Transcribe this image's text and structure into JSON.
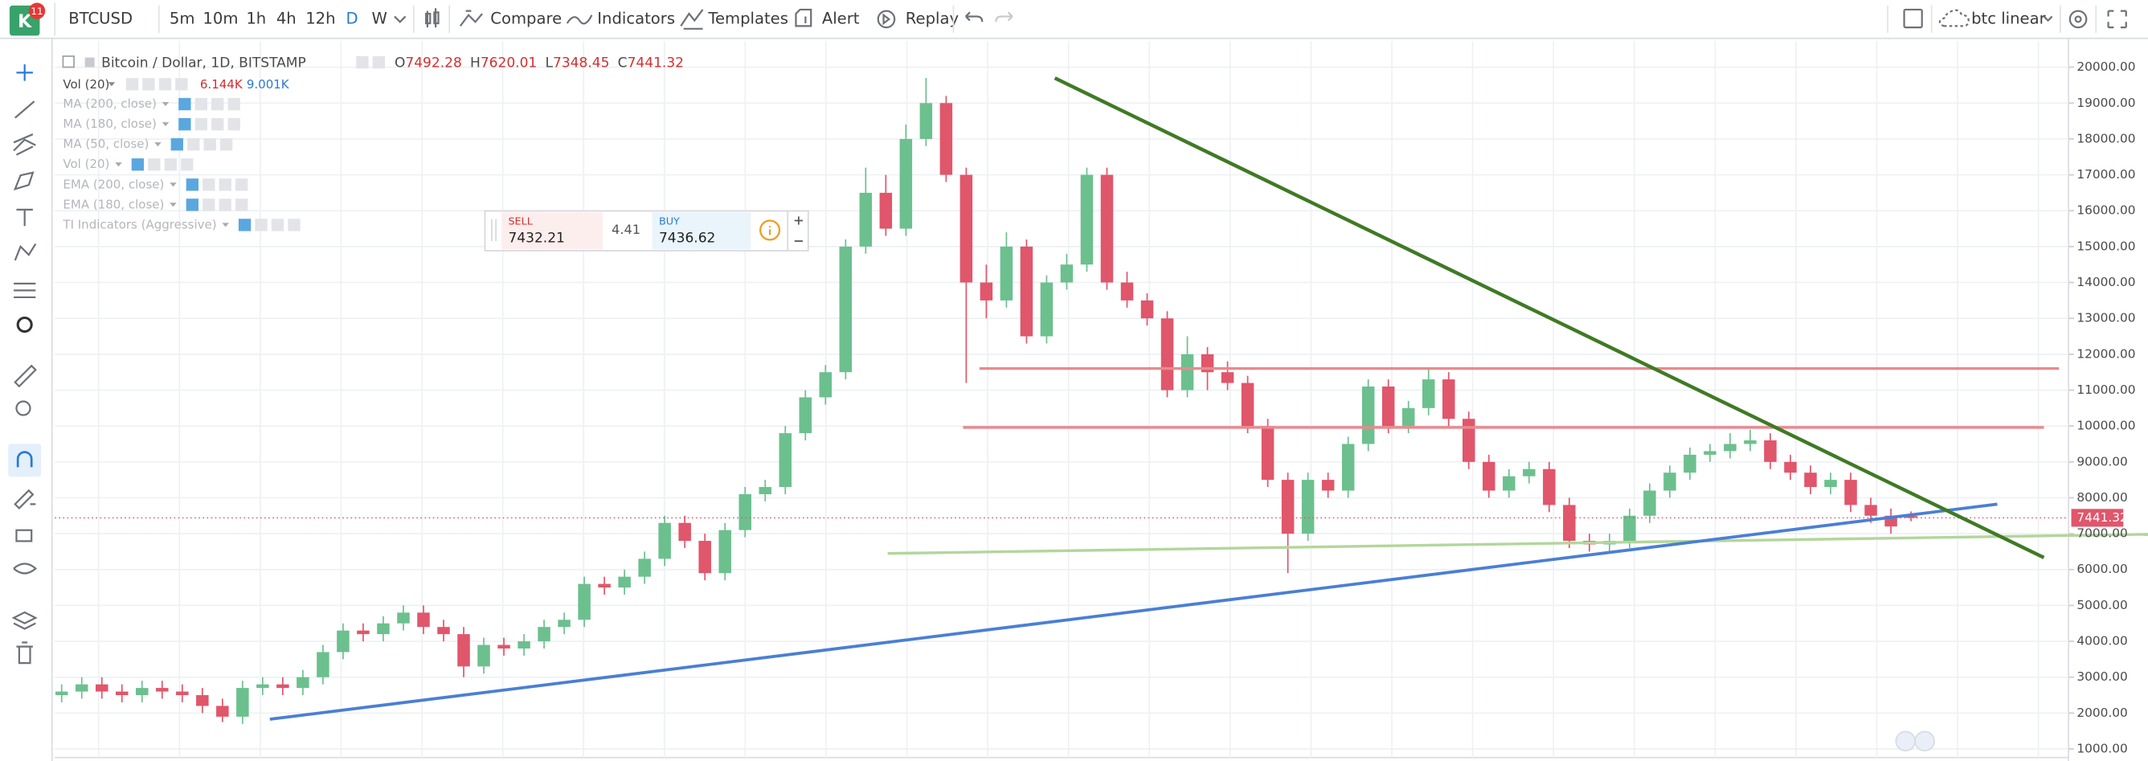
{
  "toolbar": {
    "badge": "11",
    "symbol": "BTCUSD",
    "intervals": [
      "5m",
      "10m",
      "1h",
      "4h",
      "12h",
      "D",
      "W"
    ],
    "active_interval": "D",
    "buttons": [
      "Compare",
      "Indicators",
      "Templates",
      "Alert",
      "Replay"
    ],
    "layout_name": "btc linear"
  },
  "legend": {
    "title": "Bitcoin / Dollar, 1D, BITSTAMP",
    "ohlc": [
      {
        "label": "O",
        "value": 7492.28
      },
      {
        "label": "H",
        "value": 7620.01
      },
      {
        "label": "L",
        "value": 7348.45
      },
      {
        "label": "C",
        "value": 7441.32
      }
    ],
    "volume": {
      "name": "Vol (20)",
      "values": [
        "6.144K",
        "9.001K"
      ]
    },
    "indicators": [
      "MA (200, close)",
      "MA (180, close)",
      "MA (50, close)",
      "Vol (20)",
      "EMA (200, close)",
      "EMA (180, close)",
      "TI Indicators (Aggressive)"
    ]
  },
  "trade": {
    "sell_label": "SELL",
    "sell_price": 7432.21,
    "spread": 4.41,
    "buy_label": "BUY",
    "buy_price": 7436.62
  },
  "chart_data": {
    "type": "candlestick",
    "up_color": "#6cc08e",
    "down_color": "#e0566b",
    "open": [
      2500,
      2600,
      2800,
      2600,
      2500,
      2700,
      2600,
      2500,
      2200,
      1900,
      2700,
      2800,
      2700,
      3000,
      3700,
      4300,
      4200,
      4500,
      4800,
      4400,
      4200,
      3300,
      3900,
      3800,
      4000,
      4400,
      4600,
      5600,
      5500,
      5800,
      6300,
      7300,
      6800,
      5900,
      7100,
      8100,
      8300,
      9800,
      10800,
      11500,
      15000,
      16500,
      15500,
      18000,
      19000,
      17000,
      14000,
      13500,
      15000,
      12500,
      14000,
      14500,
      17000,
      14000,
      13500,
      13000,
      11000,
      12000,
      11500,
      11200,
      10000,
      8500,
      7000,
      8500,
      8200,
      9500,
      11100,
      10000,
      10500,
      11300,
      10200,
      9000,
      8200,
      8600,
      8800,
      7800,
      6800,
      6700,
      6800,
      7500,
      8200,
      8700,
      9200,
      9300,
      9500,
      9600,
      9000,
      8700,
      8300,
      8500,
      7800,
      7500,
      7492.28
    ],
    "high": [
      2800,
      3000,
      3000,
      2800,
      2900,
      2900,
      2800,
      2700,
      2400,
      2900,
      3000,
      3000,
      3200,
      3900,
      4500,
      4500,
      4700,
      5000,
      5000,
      4600,
      4400,
      4100,
      4100,
      4200,
      4600,
      4800,
      5800,
      5800,
      6000,
      6500,
      7500,
      7500,
      7000,
      7300,
      8300,
      8500,
      10000,
      11000,
      11700,
      15200,
      17200,
      17000,
      18400,
      19700,
      19200,
      17200,
      14500,
      15400,
      15200,
      14200,
      14800,
      17200,
      17200,
      14300,
      13700,
      13200,
      12500,
      12200,
      11800,
      11400,
      10200,
      8700,
      8700,
      8700,
      9700,
      11300,
      11300,
      10700,
      11600,
      11500,
      10400,
      9200,
      8800,
      9000,
      9000,
      8000,
      7000,
      7000,
      7700,
      8400,
      8900,
      9400,
      9500,
      9800,
      9900,
      9800,
      9200,
      8900,
      8700,
      8700,
      8000,
      7700,
      7620.01
    ],
    "low": [
      2300,
      2400,
      2400,
      2300,
      2300,
      2400,
      2300,
      2000,
      1750,
      1700,
      2500,
      2500,
      2500,
      2800,
      3500,
      4000,
      4000,
      4300,
      4200,
      4000,
      3000,
      3100,
      3600,
      3600,
      3800,
      4200,
      4400,
      5300,
      5300,
      5600,
      6100,
      6600,
      5700,
      5700,
      6900,
      7900,
      8100,
      9600,
      10600,
      11300,
      14800,
      15300,
      15300,
      17800,
      16800,
      11200,
      13000,
      13300,
      12300,
      12300,
      13800,
      14300,
      13800,
      13300,
      12800,
      10800,
      10800,
      11000,
      11000,
      9800,
      8300,
      5900,
      6800,
      8000,
      8000,
      9300,
      9800,
      9800,
      10300,
      10000,
      8800,
      8000,
      8000,
      8400,
      7600,
      6600,
      6500,
      6500,
      6600,
      7300,
      8000,
      8500,
      9000,
      9100,
      9300,
      8800,
      8500,
      8100,
      8100,
      7600,
      7300,
      7000,
      7348.45
    ],
    "close": [
      2600,
      2800,
      2600,
      2500,
      2700,
      2600,
      2500,
      2200,
      1900,
      2700,
      2800,
      2700,
      3000,
      3700,
      4300,
      4200,
      4500,
      4800,
      4400,
      4200,
      3300,
      3900,
      3800,
      4000,
      4400,
      4600,
      5600,
      5500,
      5800,
      6300,
      7300,
      6800,
      5900,
      7100,
      8100,
      8300,
      9800,
      10800,
      11500,
      15000,
      16500,
      15500,
      18000,
      19000,
      17000,
      14000,
      13500,
      15000,
      12500,
      14000,
      14500,
      17000,
      14000,
      13500,
      13000,
      11000,
      12000,
      11500,
      11200,
      10000,
      8500,
      7000,
      8500,
      8200,
      9500,
      11100,
      10000,
      10500,
      11300,
      10200,
      9000,
      8200,
      8600,
      8800,
      7800,
      6800,
      6700,
      6800,
      7500,
      8200,
      8700,
      9200,
      9300,
      9500,
      9600,
      9000,
      8700,
      8300,
      8500,
      7800,
      7500,
      7200,
      7441.32
    ],
    "ylim": [
      760,
      20460
    ],
    "yticks": [
      {
        "value": 1000,
        "label": "1000.00"
      },
      {
        "value": 2000,
        "label": "2000.00"
      },
      {
        "value": 3000,
        "label": "3000.00"
      },
      {
        "value": 4000,
        "label": "4000.00"
      },
      {
        "value": 5000,
        "label": "5000.00"
      },
      {
        "value": 6000,
        "label": "6000.00"
      },
      {
        "value": 7000,
        "label": "7000.00"
      },
      {
        "value": 8000,
        "label": "8000.00"
      },
      {
        "value": 9000,
        "label": "9000.00"
      },
      {
        "value": 10000,
        "label": "10000.00"
      },
      {
        "value": 11000,
        "label": "11000.00"
      },
      {
        "value": 12000,
        "label": "12000.00"
      },
      {
        "value": 13000,
        "label": "13000.00"
      },
      {
        "value": 14000,
        "label": "14000.00"
      },
      {
        "value": 15000,
        "label": "15000.00"
      },
      {
        "value": 16000,
        "label": "16000.00"
      },
      {
        "value": 17000,
        "label": "17000.00"
      },
      {
        "value": 18000,
        "label": "18000.00"
      },
      {
        "value": 19000,
        "label": "19000.00"
      },
      {
        "value": 20000,
        "label": "20000.00"
      }
    ],
    "grid": true,
    "last_price": 7441.32
  }
}
